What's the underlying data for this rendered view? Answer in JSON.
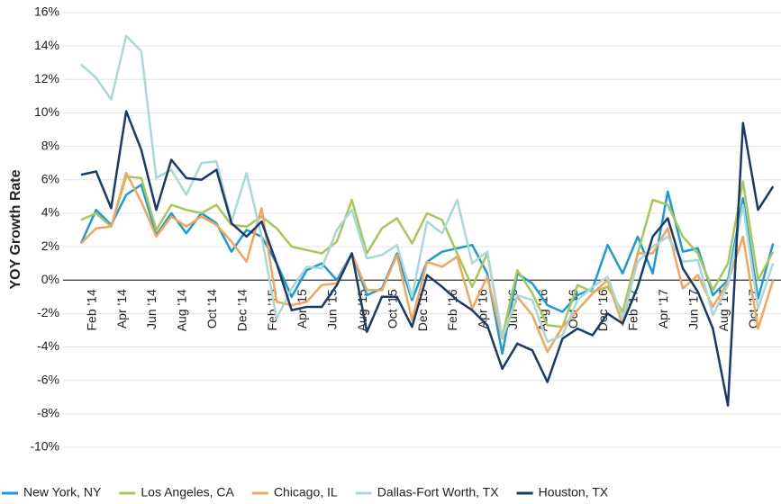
{
  "chart_data": {
    "type": "line",
    "y_label": "YOY Growth Rate",
    "categories": [
      null,
      "Feb '14",
      null,
      "Apr '14",
      null,
      "Jun '14",
      null,
      "Aug '14",
      null,
      "Oct '14",
      null,
      "Dec '14",
      null,
      "Feb '15",
      null,
      "Apr '15",
      null,
      "Jun '15",
      null,
      "Aug '15",
      null,
      "Oct '15",
      null,
      "Dec '15",
      null,
      "Feb '16",
      null,
      "Apr '16",
      null,
      "Jun '16",
      null,
      "Aug '16",
      null,
      "Oct '16",
      null,
      "Dec '16",
      null,
      "Feb '17",
      null,
      "Apr '17",
      null,
      "Jun '17",
      null,
      "Aug '17",
      null,
      "Oct '17",
      null
    ],
    "ylim": [
      -10,
      16
    ],
    "yticks": [
      {
        "value": -10,
        "label": "-10%"
      },
      {
        "value": -8,
        "label": "-8%"
      },
      {
        "value": -6,
        "label": "-6%"
      },
      {
        "value": -4,
        "label": "-4%"
      },
      {
        "value": -2,
        "label": "-2%"
      },
      {
        "value": 0,
        "label": "0%"
      },
      {
        "value": 2,
        "label": "2%"
      },
      {
        "value": 4,
        "label": "4%"
      },
      {
        "value": 6,
        "label": "6%"
      },
      {
        "value": 8,
        "label": "8%"
      },
      {
        "value": 10,
        "label": "10%"
      },
      {
        "value": 12,
        "label": "12%"
      },
      {
        "value": 14,
        "label": "14%"
      },
      {
        "value": 16,
        "label": "16%"
      }
    ],
    "grid": true,
    "legend": "bottom",
    "series": [
      {
        "name": "New York, NY",
        "color": "#1a9bd7",
        "values": [
          2.2,
          4.2,
          3.3,
          5.1,
          5.7,
          2.7,
          4.0,
          2.8,
          4.0,
          3.4,
          1.7,
          3.0,
          2.6,
          1.0,
          -1.0,
          0.6,
          1.0,
          0.0,
          1.6,
          -0.9,
          -0.5,
          1.6,
          -1.2,
          1.1,
          1.7,
          1.9,
          2.1,
          0.4,
          -4.4,
          0.4,
          -0.2,
          -1.5,
          -1.9,
          -0.9,
          -0.5,
          2.1,
          0.4,
          2.6,
          0.4,
          5.3,
          1.7,
          1.9,
          -0.9,
          0.0,
          4.9,
          -1.1,
          2.2
        ]
      },
      {
        "name": "Los Angeles, CA",
        "color": "#a5c85a",
        "values": [
          3.6,
          4.0,
          3.2,
          6.2,
          6.1,
          3.0,
          4.5,
          4.2,
          4.0,
          4.5,
          3.3,
          3.2,
          3.8,
          3.1,
          2.0,
          1.8,
          1.6,
          2.3,
          4.8,
          1.6,
          3.1,
          3.7,
          2.2,
          4.0,
          3.6,
          1.6,
          -0.4,
          1.6,
          -3.4,
          0.6,
          -0.8,
          -2.7,
          -2.8,
          -0.3,
          -0.7,
          -0.4,
          -1.9,
          1.6,
          4.8,
          4.5,
          2.6,
          1.6,
          -0.6,
          1.0,
          5.9,
          0.0,
          1.7
        ]
      },
      {
        "name": "Chicago, IL",
        "color": "#f5a55a",
        "values": [
          2.2,
          3.1,
          3.2,
          6.4,
          4.7,
          2.6,
          3.8,
          3.2,
          3.8,
          3.3,
          2.3,
          1.1,
          4.3,
          -1.3,
          -1.5,
          -1.3,
          -0.3,
          -0.2,
          1.6,
          -0.6,
          -0.6,
          1.5,
          -2.4,
          1.1,
          0.8,
          1.4,
          -1.7,
          0.2,
          -3.5,
          -1.0,
          -2.1,
          -4.3,
          -2.8,
          -1.8,
          -0.8,
          0.0,
          -2.7,
          1.6,
          1.6,
          3.1,
          -0.5,
          0.3,
          -1.6,
          -0.1,
          2.6,
          -2.9,
          0.0
        ]
      },
      {
        "name": "Dallas-Fort Worth, TX",
        "color": "#a8d8d8",
        "values": [
          12.9,
          12.1,
          10.8,
          14.6,
          13.7,
          6.1,
          6.6,
          5.1,
          7.0,
          7.1,
          3.5,
          6.4,
          2.6,
          -2.3,
          -0.5,
          0.8,
          0.7,
          3.0,
          4.2,
          1.3,
          1.5,
          2.1,
          -1.0,
          3.5,
          2.8,
          4.8,
          1.0,
          1.7,
          -3.4,
          -0.9,
          -1.2,
          -3.7,
          -3.3,
          -1.2,
          -0.4,
          0.2,
          -2.3,
          1.1,
          2.0,
          2.6,
          1.1,
          1.2,
          -2.1,
          -0.3,
          4.5,
          -1.7,
          1.0
        ]
      },
      {
        "name": "Houston, TX",
        "color": "#1a3a6b",
        "values": [
          6.3,
          6.5,
          4.3,
          10.1,
          7.8,
          4.2,
          7.2,
          6.1,
          6.0,
          6.6,
          3.4,
          2.6,
          3.5,
          1.0,
          -1.8,
          -1.6,
          -1.6,
          -0.3,
          1.6,
          -3.1,
          -1.0,
          -1.0,
          -2.8,
          0.3,
          -0.4,
          -1.2,
          -1.8,
          -2.7,
          -5.3,
          -3.8,
          -4.2,
          -6.1,
          -3.5,
          -2.9,
          -3.3,
          -2.0,
          -2.6,
          -0.4,
          2.6,
          3.7,
          0.7,
          -0.7,
          -2.9,
          -7.5,
          9.4,
          4.2,
          5.6
        ]
      }
    ]
  }
}
